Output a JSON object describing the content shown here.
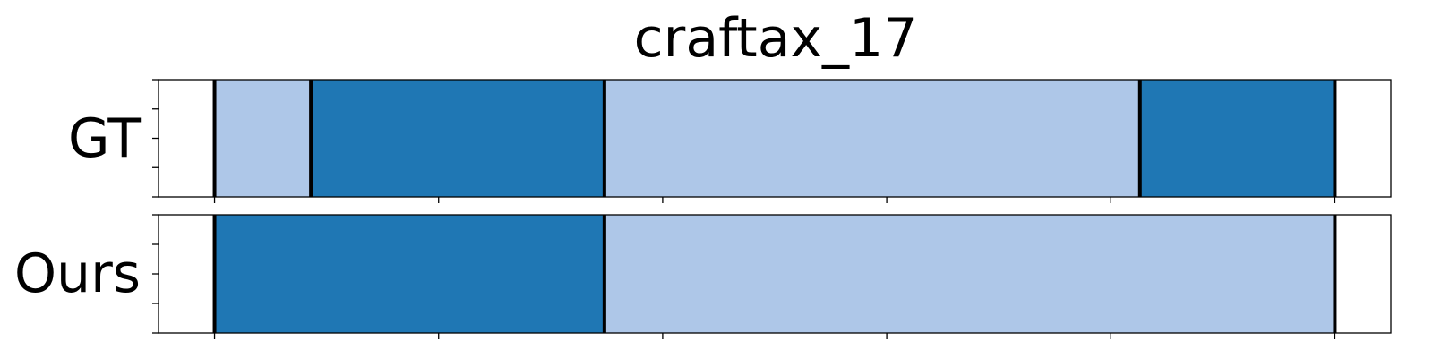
{
  "chart_data": {
    "type": "bar",
    "title": "craftax_17",
    "xlim": [
      0,
      5.5
    ],
    "x_ticks": [
      0.25,
      1.25,
      2.25,
      3.25,
      4.25,
      5.25
    ],
    "y_ticks_per_panel": 5,
    "colors": {
      "dark": "#1f77b4",
      "light": "#aec7e8",
      "boundary": "#000000"
    },
    "rows": [
      {
        "label": "GT",
        "segments": [
          {
            "start": 0.25,
            "end": 0.68,
            "color": "light"
          },
          {
            "start": 0.68,
            "end": 1.99,
            "color": "dark"
          },
          {
            "start": 1.99,
            "end": 4.38,
            "color": "light"
          },
          {
            "start": 4.38,
            "end": 5.25,
            "color": "dark"
          }
        ],
        "boundaries": [
          0.25,
          0.68,
          1.99,
          4.38,
          5.25
        ]
      },
      {
        "label": "Ours",
        "segments": [
          {
            "start": 0.25,
            "end": 1.99,
            "color": "dark"
          },
          {
            "start": 1.99,
            "end": 5.25,
            "color": "light"
          }
        ],
        "boundaries": [
          0.25,
          1.99,
          5.25
        ]
      }
    ]
  }
}
